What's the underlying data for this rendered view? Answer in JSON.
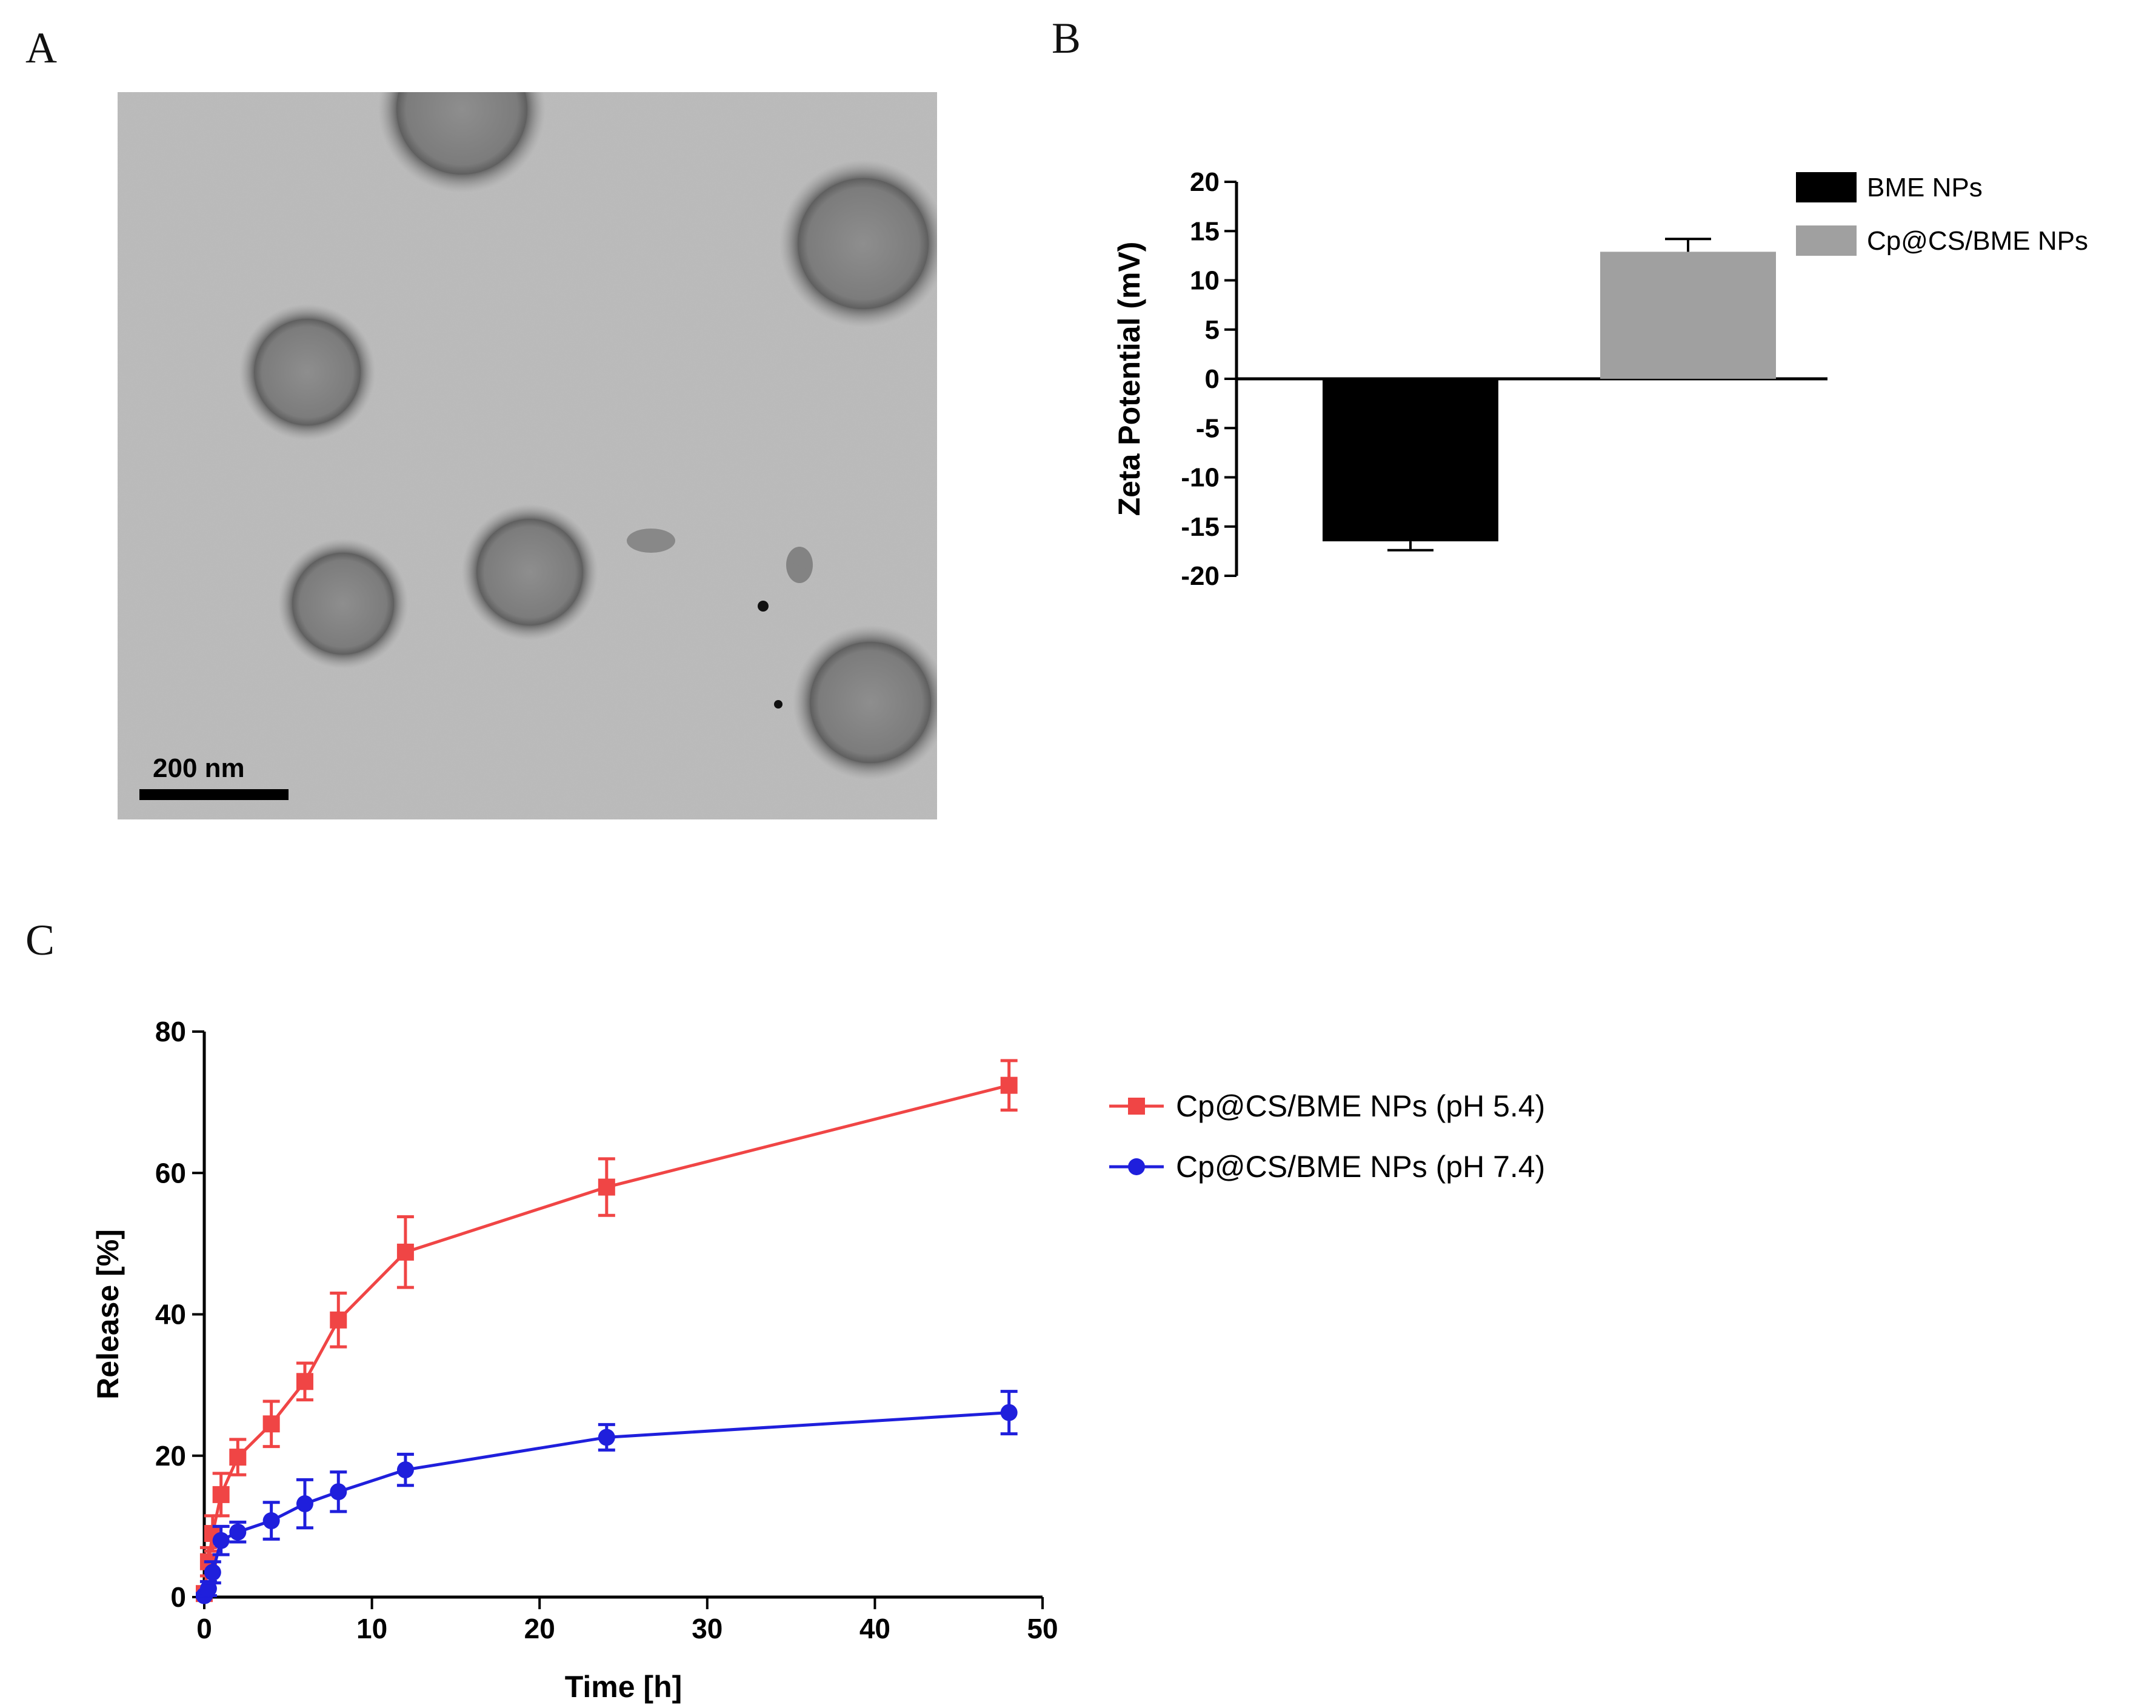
{
  "panels": {
    "a": "A",
    "b": "B",
    "c": "C"
  },
  "scale_bar": {
    "label": "200 nm"
  },
  "chart_data": [
    {
      "type": "bar",
      "panel": "B",
      "ylabel": "Zeta Potential (mV)",
      "ylim": [
        -20,
        20
      ],
      "yticks": [
        -20,
        -15,
        -10,
        -5,
        0,
        5,
        10,
        15,
        20
      ],
      "legend_position": "top-right",
      "series": [
        {
          "name": "BME NPs",
          "value": -16.5,
          "error": 0.9,
          "color": "#000000"
        },
        {
          "name": "Cp@CS/BME NPs",
          "value": 12.9,
          "error": 1.3,
          "color": "#a0a0a0"
        }
      ]
    },
    {
      "type": "line",
      "panel": "C",
      "xlabel": "Time [h]",
      "ylabel": "Release [%]",
      "xlim": [
        0,
        50
      ],
      "ylim": [
        0,
        80
      ],
      "xticks": [
        0,
        10,
        20,
        30,
        40,
        50
      ],
      "yticks": [
        0,
        20,
        40,
        60,
        80
      ],
      "legend_position": "top-right",
      "series": [
        {
          "name": "Cp@CS/BME NPs (pH 5.4)",
          "color": "#f04545",
          "marker": "square",
          "x": [
            0,
            0.25,
            0.5,
            1,
            2,
            4,
            6,
            8,
            12,
            24,
            48
          ],
          "y": [
            0.5,
            5,
            9,
            14.5,
            19.8,
            24.5,
            30.5,
            39.2,
            48.8,
            58,
            72.4
          ],
          "error": [
            0.5,
            2,
            2.5,
            3,
            2.5,
            3.2,
            2.6,
            3.8,
            5,
            4,
            3.5
          ]
        },
        {
          "name": "Cp@CS/BME NPs (pH 7.4)",
          "color": "#1f1fdc",
          "marker": "circle",
          "x": [
            0,
            0.25,
            0.5,
            1,
            2,
            4,
            6,
            8,
            12,
            24,
            48
          ],
          "y": [
            0.2,
            1.2,
            3.5,
            8,
            9.2,
            10.8,
            13.2,
            14.9,
            18,
            22.6,
            26.1
          ],
          "error": [
            0.3,
            1,
            1.5,
            2,
            1.4,
            2.6,
            3.4,
            2.8,
            2.2,
            1.8,
            3
          ]
        }
      ]
    }
  ]
}
